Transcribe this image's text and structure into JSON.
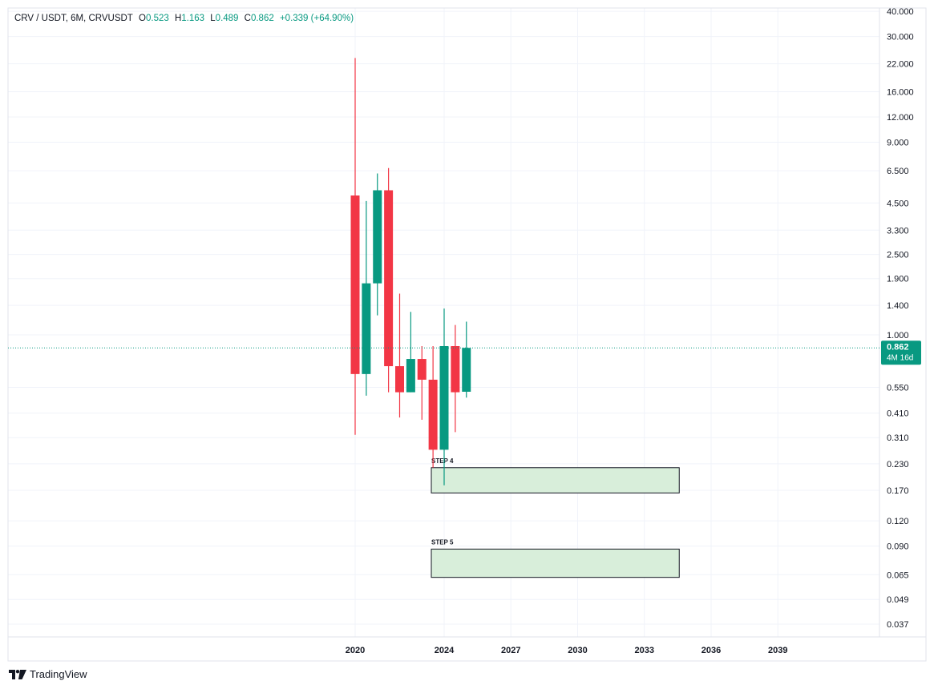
{
  "legend": {
    "symbol": "CRV / USDT, 6M, CRVUSDT",
    "o_label": "O",
    "o_value": "0.523",
    "h_label": "H",
    "h_value": "1.163",
    "l_label": "L",
    "l_value": "0.489",
    "c_label": "C",
    "c_value": "0.862",
    "change": "+0.339 (+64.90%)"
  },
  "brand": {
    "logo": "𝟏𝟕",
    "name": "TradingView"
  },
  "colors": {
    "up": "#089981",
    "down": "#f23645",
    "zone_fill": "#d8eeda",
    "zone_stroke": "#131722"
  },
  "current_price": {
    "value": "0.862",
    "countdown": "4M 16d"
  },
  "chart_data": {
    "type": "candlestick",
    "yscale": "log",
    "ylim": [
      0.03,
      40
    ],
    "y_ticks": [
      "40.000",
      "30.000",
      "22.000",
      "16.000",
      "12.000",
      "9.000",
      "6.500",
      "4.500",
      "3.300",
      "2.500",
      "1.900",
      "1.400",
      "1.000",
      "0.550",
      "0.410",
      "0.310",
      "0.230",
      "0.170",
      "0.120",
      "0.090",
      "0.065",
      "0.049",
      "0.037"
    ],
    "x_ticks": [
      {
        "label": "2020",
        "year": 2020
      },
      {
        "label": "2024",
        "year": 2024
      },
      {
        "label": "2027",
        "year": 2027
      },
      {
        "label": "2030",
        "year": 2030
      },
      {
        "label": "2033",
        "year": 2033
      },
      {
        "label": "2036",
        "year": 2036
      },
      {
        "label": "2039",
        "year": 2039
      }
    ],
    "candles": [
      {
        "period": "2020 H2",
        "open": 4.9,
        "high": 23.5,
        "low": 0.32,
        "close": 0.64
      },
      {
        "period": "2021 H1",
        "open": 0.64,
        "high": 4.6,
        "low": 0.5,
        "close": 1.8
      },
      {
        "period": "2021 H2",
        "open": 1.8,
        "high": 6.3,
        "low": 1.25,
        "close": 5.2
      },
      {
        "period": "2022 H1",
        "open": 5.2,
        "high": 6.7,
        "low": 0.52,
        "close": 0.7
      },
      {
        "period": "2022 H2",
        "open": 0.7,
        "high": 1.6,
        "low": 0.39,
        "close": 0.52
      },
      {
        "period": "2023 H1",
        "open": 0.52,
        "high": 1.3,
        "low": 0.52,
        "close": 0.76
      },
      {
        "period": "2023 H2",
        "open": 0.76,
        "high": 0.88,
        "low": 0.38,
        "close": 0.6
      },
      {
        "period": "2024 H1",
        "open": 0.6,
        "high": 0.88,
        "low": 0.22,
        "close": 0.27
      },
      {
        "period": "2024 H2",
        "open": 0.27,
        "high": 1.35,
        "low": 0.18,
        "close": 0.88
      },
      {
        "period": "2025 H1",
        "open": 0.88,
        "high": 1.12,
        "low": 0.33,
        "close": 0.52
      },
      {
        "period": "2025 H2",
        "open": 0.523,
        "high": 1.163,
        "low": 0.489,
        "close": 0.862
      }
    ],
    "zones": [
      {
        "label": "STEP 4",
        "from": "2024",
        "to": "2035",
        "top": 0.22,
        "bottom": 0.165
      },
      {
        "label": "STEP 5",
        "from": "2024",
        "to": "2035",
        "top": 0.087,
        "bottom": 0.063
      }
    ]
  }
}
